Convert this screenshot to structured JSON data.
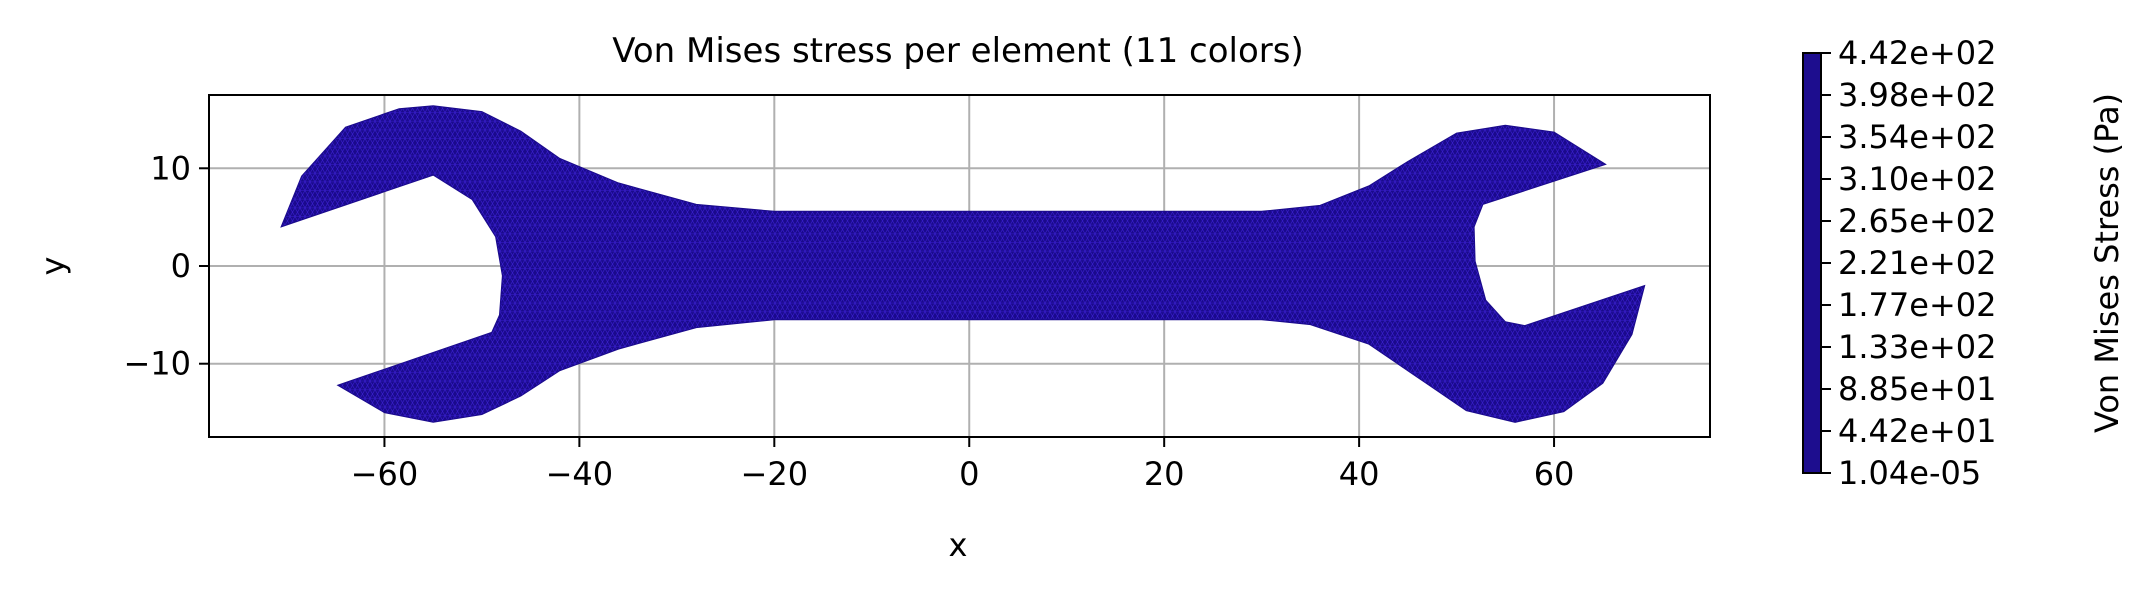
{
  "chart_data": {
    "type": "heatmap",
    "title": "Von Mises stress per element (11 colors)",
    "xlabel": "x",
    "ylabel": "y",
    "xlim": [
      -78,
      76
    ],
    "ylim": [
      -17.5,
      17.5
    ],
    "xticks": [
      -60,
      -40,
      -20,
      0,
      20,
      40,
      60
    ],
    "xtick_labels": [
      "−60",
      "−40",
      "−20",
      "0",
      "20",
      "40",
      "60"
    ],
    "yticks": [
      10,
      0,
      -10
    ],
    "ytick_labels": [
      "10",
      "0",
      "−10"
    ],
    "grid": true,
    "mesh_color": "#1a0a8c",
    "mesh_line_color": "#3a1fd0",
    "grid_color": "#b0b0b0",
    "wrench_outline": [
      [
        -55,
        9.3
      ],
      [
        -70.6,
        4
      ],
      [
        -68.5,
        9.2
      ],
      [
        -64,
        14.2
      ],
      [
        -58.5,
        16.1
      ],
      [
        -55,
        16.4
      ],
      [
        -50,
        15.8
      ],
      [
        -46,
        13.8
      ],
      [
        -42,
        11
      ],
      [
        -36,
        8.5
      ],
      [
        -28,
        6.3
      ],
      [
        -20,
        5.6
      ],
      [
        30,
        5.6
      ],
      [
        36,
        6.2
      ],
      [
        41,
        8.2
      ],
      [
        45,
        10.7
      ],
      [
        50,
        13.6
      ],
      [
        55,
        14.4
      ],
      [
        60,
        13.7
      ],
      [
        65.3,
        10.4
      ],
      [
        52.7,
        6.3
      ],
      [
        51.8,
        4
      ],
      [
        51.9,
        0.5
      ],
      [
        53,
        -3.5
      ],
      [
        55,
        -5.7
      ],
      [
        57,
        -6.1
      ],
      [
        69.3,
        -2
      ],
      [
        68,
        -7
      ],
      [
        65,
        -12
      ],
      [
        61,
        -14.9
      ],
      [
        56,
        -16
      ],
      [
        51,
        -14.8
      ],
      [
        46,
        -11.4
      ],
      [
        41,
        -8
      ],
      [
        35,
        -6
      ],
      [
        30,
        -5.5
      ],
      [
        -20,
        -5.5
      ],
      [
        -28,
        -6.3
      ],
      [
        -36,
        -8.5
      ],
      [
        -42,
        -10.7
      ],
      [
        -46,
        -13.3
      ],
      [
        -50,
        -15.2
      ],
      [
        -55,
        -16
      ],
      [
        -60,
        -15
      ],
      [
        -64.8,
        -12.2
      ],
      [
        -49,
        -6.8
      ],
      [
        -48.2,
        -5
      ],
      [
        -47.9,
        -1
      ],
      [
        -48.6,
        3
      ],
      [
        -51,
        6.8
      ]
    ],
    "colorbar": {
      "label": "Von Mises Stress (Pa)",
      "ticks": [
        442,
        398,
        354,
        310,
        265,
        221,
        177,
        133,
        88.5,
        44.2,
        1.04e-05
      ],
      "tick_labels": [
        "4.42e+02",
        "3.98e+02",
        "3.54e+02",
        "3.10e+02",
        "2.65e+02",
        "2.21e+02",
        "1.77e+02",
        "1.33e+02",
        "8.85e+01",
        "4.42e+01",
        "1.04e-05"
      ],
      "color": "#1d0d8e"
    }
  }
}
